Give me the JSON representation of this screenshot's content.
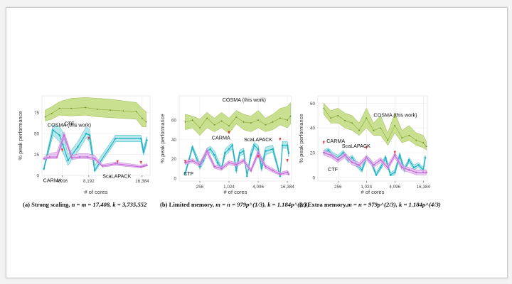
{
  "figure": {
    "colors": {
      "cosma_fill": "#c7de8b",
      "cosma_stroke": "#8fb040",
      "cosma_point": "#5e8a2a",
      "ctf": "#1db1c2",
      "ctf_fill": "#9fe0e6",
      "scalapack": "#c46bd8",
      "scalapack_fill": "#e2b5ee",
      "carma": "#e33b3b",
      "grid": "#ebebeb",
      "axis": "#555555"
    }
  },
  "chart_data": [
    {
      "type": "line",
      "caption": {
        "prefix": "(a) Strong scaling, ",
        "formula": "n = m = 17,408, k = 3,735,552"
      },
      "xlabel": "# of cores",
      "ylabel": "% peak performance",
      "xlim": [
        1000,
        17600
      ],
      "ylim": [
        0,
        95
      ],
      "xticks": [
        {
          "value": 4096,
          "label": "4,096"
        },
        {
          "value": 8192,
          "label": "8,192"
        },
        {
          "value": 16384,
          "label": "16,384"
        }
      ],
      "yticks": [
        {
          "value": 0,
          "label": "0"
        },
        {
          "value": 25,
          "label": "25"
        },
        {
          "value": 50,
          "label": "50"
        },
        {
          "value": 75,
          "label": "75"
        }
      ],
      "grid": true,
      "series": [
        {
          "name": "COSMA (this work)",
          "x": [
            1500,
            2500,
            3700,
            5500,
            7700,
            9500,
            11500,
            13500,
            15500,
            16400,
            17000
          ],
          "y": [
            70,
            74,
            80,
            80,
            81,
            79,
            78,
            77,
            76,
            68,
            64
          ],
          "upper": [
            78,
            82,
            88,
            92,
            93,
            92,
            91,
            89,
            87,
            80,
            76
          ],
          "lower": [
            65,
            67,
            72,
            71,
            72,
            70,
            69,
            68,
            67,
            58,
            58
          ]
        },
        {
          "name": "CTF",
          "x": [
            1300,
            2700,
            3700,
            4200,
            5000,
            6500,
            7800,
            8300,
            9100,
            12300,
            16200,
            16600,
            17100
          ],
          "y": [
            8,
            54,
            48,
            37,
            18,
            34,
            50,
            48,
            6,
            44,
            44,
            28,
            42
          ],
          "upper": [
            10,
            60,
            58,
            52,
            25,
            40,
            58,
            55,
            12,
            48,
            48,
            32,
            46
          ],
          "lower": [
            6,
            48,
            40,
            28,
            12,
            28,
            45,
            40,
            4,
            40,
            40,
            24,
            38
          ]
        },
        {
          "name": "ScaLAPACK",
          "x": [
            1300,
            2200,
            3300,
            4400,
            5600,
            6800,
            8000,
            9100,
            10300,
            12300,
            16200,
            16600,
            17100
          ],
          "y": [
            20,
            22,
            22,
            48,
            21,
            22,
            22,
            20,
            11,
            14,
            10,
            11,
            12
          ],
          "upper": [
            22,
            26,
            28,
            52,
            24,
            26,
            26,
            24,
            13,
            16,
            12,
            13,
            14
          ],
          "lower": [
            19,
            20,
            20,
            44,
            19,
            20,
            20,
            18,
            10,
            12,
            9,
            10,
            11
          ]
        },
        {
          "name": "CARMA",
          "x": [
            4096,
            8192,
            12600,
            16200
          ],
          "y": [
            30,
            44,
            16,
            15
          ]
        }
      ],
      "annotations": [
        {
          "text": "COSMA (this work)",
          "series": "COSMA (this work)"
        },
        {
          "text": "CTF",
          "series": "CTF"
        },
        {
          "text": "CARMA",
          "series": "CARMA"
        },
        {
          "text": "ScaLAPACK",
          "series": "ScaLAPACK"
        }
      ]
    },
    {
      "type": "line",
      "caption": {
        "prefix": "(b) Limited memory, ",
        "formula": "m = n = 979p^(1/3), k = 1.184p^(2/3)"
      },
      "xlabel": "# of cores",
      "ylabel": "% peak performance",
      "log_x": true,
      "xlim": [
        96,
        20000
      ],
      "ylim": [
        -3,
        85
      ],
      "xticks": [
        {
          "value": 256,
          "label": "256"
        },
        {
          "value": 1024,
          "label": "1,024"
        },
        {
          "value": 4096,
          "label": "4,096"
        },
        {
          "value": 16384,
          "label": "16,384"
        }
      ],
      "yticks": [
        {
          "value": 0,
          "label": "0"
        },
        {
          "value": 20,
          "label": "20"
        },
        {
          "value": 40,
          "label": "40"
        },
        {
          "value": 60,
          "label": "60"
        }
      ],
      "grid": true,
      "series": [
        {
          "name": "COSMA (this work)",
          "x": [
            128,
            180,
            256,
            360,
            512,
            720,
            1024,
            1450,
            2048,
            2900,
            4096,
            5800,
            8192,
            11600,
            16384,
            19000
          ],
          "y": [
            58,
            60,
            52,
            62,
            55,
            59,
            54,
            63,
            58,
            57,
            60,
            55,
            58,
            62,
            60,
            64
          ],
          "upper": [
            66,
            64,
            61,
            68,
            62,
            68,
            62,
            70,
            66,
            64,
            70,
            62,
            66,
            72,
            74,
            78
          ],
          "lower": [
            50,
            52,
            44,
            52,
            48,
            52,
            46,
            56,
            50,
            48,
            52,
            48,
            50,
            55,
            52,
            56
          ]
        },
        {
          "name": "CTF",
          "x": [
            128,
            180,
            256,
            300,
            360,
            420,
            512,
            600,
            720,
            850,
            1024,
            1200,
            1450,
            1700,
            2048,
            2400,
            2900,
            3400,
            4096,
            4800,
            5800,
            8192,
            11600,
            13000,
            16384,
            17500
          ],
          "y": [
            5,
            32,
            12,
            18,
            28,
            30,
            24,
            16,
            10,
            26,
            30,
            34,
            8,
            26,
            28,
            2,
            24,
            34,
            30,
            10,
            28,
            30,
            2,
            34,
            34,
            26
          ],
          "upper": [
            7,
            34,
            16,
            21,
            31,
            33,
            28,
            20,
            12,
            30,
            34,
            36,
            12,
            29,
            31,
            4,
            28,
            37,
            34,
            14,
            32,
            34,
            4,
            38,
            38,
            30
          ],
          "lower": [
            3,
            30,
            9,
            15,
            25,
            27,
            21,
            13,
            8,
            23,
            27,
            30,
            5,
            23,
            25,
            1,
            21,
            31,
            26,
            7,
            24,
            27,
            1,
            31,
            31,
            22
          ]
        },
        {
          "name": "ScaLAPACK",
          "x": [
            128,
            180,
            256,
            360,
            512,
            720,
            1024,
            1450,
            2048,
            2900,
            4096,
            5800,
            8192,
            11600,
            16384,
            17500
          ],
          "y": [
            16,
            18,
            14,
            28,
            12,
            10,
            16,
            14,
            18,
            8,
            26,
            12,
            8,
            4,
            6,
            4
          ],
          "upper": [
            18,
            20,
            16,
            31,
            14,
            12,
            18,
            16,
            20,
            10,
            29,
            14,
            10,
            6,
            8,
            6
          ],
          "lower": [
            14,
            16,
            12,
            25,
            10,
            8,
            14,
            12,
            16,
            6,
            23,
            10,
            6,
            3,
            4,
            3
          ]
        },
        {
          "name": "CARMA",
          "x": [
            128,
            1024,
            4096,
            11600,
            16384
          ],
          "y": [
            17,
            47,
            22,
            40,
            18
          ]
        }
      ],
      "annotations": [
        {
          "text": "COSMA (this work)",
          "series": "COSMA (this work)"
        },
        {
          "text": "CARMA",
          "series": "CARMA"
        },
        {
          "text": "ScaLAPACK",
          "series": "ScaLAPACK"
        },
        {
          "text": "CTF",
          "series": "CTF"
        }
      ]
    },
    {
      "type": "line",
      "caption": {
        "prefix": "(c) Extra memory,",
        "formula": "m = n = 979p^(2/3), k = 1.184p^(4/3)"
      },
      "xlabel": "# of cores",
      "ylabel": "% peak performance",
      "log_x": true,
      "xlim": [
        96,
        20000
      ],
      "ylim": [
        -3,
        66
      ],
      "xticks": [
        {
          "value": 256,
          "label": "256"
        },
        {
          "value": 1024,
          "label": "1,024"
        },
        {
          "value": 4096,
          "label": "4,096"
        },
        {
          "value": 16384,
          "label": "16,384"
        }
      ],
      "yticks": [
        {
          "value": 0,
          "label": "0"
        },
        {
          "value": 20,
          "label": "20"
        },
        {
          "value": 40,
          "label": "40"
        },
        {
          "value": 60,
          "label": "60"
        }
      ],
      "grid": true,
      "series": [
        {
          "name": "COSMA (this work)",
          "x": [
            128,
            180,
            256,
            360,
            512,
            720,
            1024,
            1450,
            2048,
            2900,
            4096,
            5800,
            8192,
            11600,
            16384,
            19000
          ],
          "y": [
            56,
            48,
            50,
            46,
            44,
            38,
            48,
            38,
            40,
            30,
            42,
            32,
            34,
            30,
            28,
            25
          ],
          "upper": [
            60,
            54,
            56,
            52,
            50,
            44,
            56,
            44,
            50,
            36,
            52,
            38,
            42,
            36,
            34,
            29
          ],
          "lower": [
            51,
            44,
            44,
            40,
            38,
            34,
            40,
            34,
            34,
            26,
            36,
            28,
            30,
            26,
            24,
            22
          ]
        },
        {
          "name": "CTF",
          "x": [
            128,
            160,
            200,
            256,
            330,
            420,
            512,
            650,
            820,
            1024,
            1300,
            1650,
            2048,
            2600,
            3300,
            4096,
            5200,
            6500,
            8192,
            10400,
            13000,
            16384,
            18000
          ],
          "y": [
            20,
            22,
            18,
            16,
            20,
            14,
            16,
            10,
            6,
            16,
            12,
            2,
            8,
            16,
            2,
            4,
            18,
            6,
            14,
            8,
            10,
            6,
            16
          ],
          "upper": [
            22,
            24,
            20,
            18,
            22,
            16,
            18,
            12,
            8,
            18,
            14,
            4,
            10,
            18,
            4,
            6,
            20,
            8,
            16,
            10,
            12,
            8,
            18
          ],
          "lower": [
            18,
            20,
            16,
            14,
            18,
            12,
            14,
            8,
            4,
            14,
            10,
            1,
            6,
            14,
            1,
            2,
            16,
            4,
            12,
            6,
            8,
            4,
            14
          ]
        },
        {
          "name": "ScaLAPACK",
          "x": [
            128,
            180,
            256,
            360,
            512,
            720,
            1024,
            1450,
            2048,
            2900,
            4096,
            5800,
            8192,
            11600,
            16384,
            19000
          ],
          "y": [
            20,
            18,
            14,
            18,
            12,
            10,
            16,
            10,
            14,
            8,
            18,
            8,
            6,
            4,
            4,
            4
          ],
          "upper": [
            22,
            20,
            16,
            20,
            14,
            12,
            18,
            12,
            16,
            10,
            20,
            10,
            8,
            6,
            6,
            6
          ],
          "lower": [
            18,
            16,
            12,
            16,
            10,
            8,
            14,
            8,
            12,
            6,
            16,
            6,
            4,
            2,
            2,
            2
          ]
        },
        {
          "name": "CARMA",
          "x": [
            128,
            1024,
            4096
          ],
          "y": [
            28,
            24,
            20
          ]
        }
      ],
      "annotations": [
        {
          "text": "COSMA (this work)",
          "series": "COSMA (this work)"
        },
        {
          "text": "CARMA",
          "series": "CARMA"
        },
        {
          "text": "ScaLAPACK",
          "series": "ScaLAPACK"
        },
        {
          "text": "CTF",
          "series": "CTF"
        }
      ]
    }
  ]
}
